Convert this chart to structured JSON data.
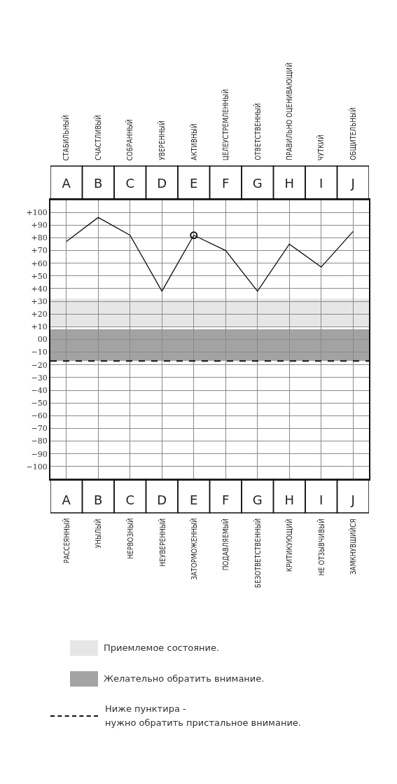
{
  "chart_data": {
    "type": "line",
    "categories": [
      "A",
      "B",
      "C",
      "D",
      "E",
      "F",
      "G",
      "H",
      "I",
      "J"
    ],
    "series": [
      {
        "color": "#111111",
        "values": [
          77,
          96,
          82,
          38,
          82,
          70,
          38,
          75,
          57,
          85
        ]
      },
      {
        "type": "scatter",
        "marker": "circle",
        "color": "#111111",
        "values": [
          null,
          null,
          null,
          null,
          82,
          null,
          null,
          null,
          null,
          null
        ]
      }
    ],
    "ylim": [
      -110,
      110
    ],
    "yticks": [
      {
        "value": 100,
        "label": "+100"
      },
      {
        "value": 90,
        "label": "+90"
      },
      {
        "value": 80,
        "label": "+80"
      },
      {
        "value": 70,
        "label": "+70"
      },
      {
        "value": 60,
        "label": "+60"
      },
      {
        "value": 50,
        "label": "+50"
      },
      {
        "value": 40,
        "label": "+40"
      },
      {
        "value": 30,
        "label": "+30"
      },
      {
        "value": 20,
        "label": "+20"
      },
      {
        "value": 10,
        "label": "+10"
      },
      {
        "value": 0,
        "label": "00"
      },
      -10,
      -20,
      -30,
      -40,
      -50,
      -60,
      -70,
      -80,
      -90,
      -100
    ],
    "grid": true,
    "bands": [
      {
        "axis": "y",
        "from": 10,
        "to": 32,
        "label": "Приемлемое состояние.",
        "color": "#e6e6e6"
      },
      {
        "axis": "y",
        "from": -17,
        "to": 8,
        "label": "Желательно обратить внимание.",
        "color": "#a3a3a3"
      }
    ],
    "ref_lines": [
      {
        "axis": "y",
        "value": -17,
        "label": "Ниже пунктира -\nнужно обратить пристальное внимание.",
        "color": "#111111",
        "line_style": "dashed"
      }
    ],
    "legend": "bottom",
    "annotations": [
      "СТАБИЛЬНЫЙ",
      "СЧАСТЛИВЫЙ",
      "СОБРАННЫЙ",
      "УВЕРЕННЫЙ",
      "АКТИВНЫЙ",
      "ЦЕЛЕУСТРЕМЛЕННЫЙ",
      "ОТВЕТСТВЕННЫЙ",
      "ПРАВИЛЬНО ОЦЕНИВАЮЩИЙ",
      "ЧУТКИЙ",
      "ОБЩИТЕЛЬНЫЙ",
      "РАССЕЯННЫЙ",
      "УНЫЛЫЙ",
      "НЕРВОЗНЫЙ",
      "НЕУВЕРЕННЫЙ",
      "ЗАТОРМОЖЕННЫЙ",
      "ПОДАВЛЯЕМЫЙ",
      "БЕЗОТВЕТСТВЕННЫЙ",
      "КРИТИКУЮЩИЙ",
      "НЕ ОТЗЫВЧИВЫЙ",
      "ЗАМКНУВШИЙСЯ"
    ]
  }
}
